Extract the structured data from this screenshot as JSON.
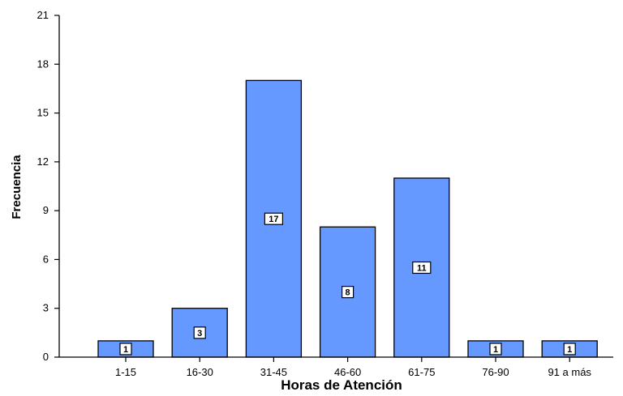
{
  "chart_data": {
    "type": "bar",
    "categories": [
      "1-15",
      "16-30",
      "31-45",
      "46-60",
      "61-75",
      "76-90",
      "91 a más"
    ],
    "values": [
      1,
      3,
      17,
      8,
      11,
      1,
      1
    ],
    "data_labels": [
      "1",
      "3",
      "17",
      "8",
      "11",
      "1",
      "1"
    ],
    "xlabel": "Horas de Atención",
    "ylabel": "Frecuencia",
    "ylim": [
      0,
      21
    ],
    "yticks": [
      0,
      3,
      6,
      9,
      12,
      15,
      18,
      21
    ],
    "ytick_labels": [
      "0",
      "3",
      "6",
      "9",
      "12",
      "15",
      "18",
      "21"
    ],
    "grid": false,
    "legend": "none",
    "colors": {
      "bar_fill": "#6699ff",
      "bar_stroke": "#000000",
      "background": "#ffffff"
    }
  }
}
